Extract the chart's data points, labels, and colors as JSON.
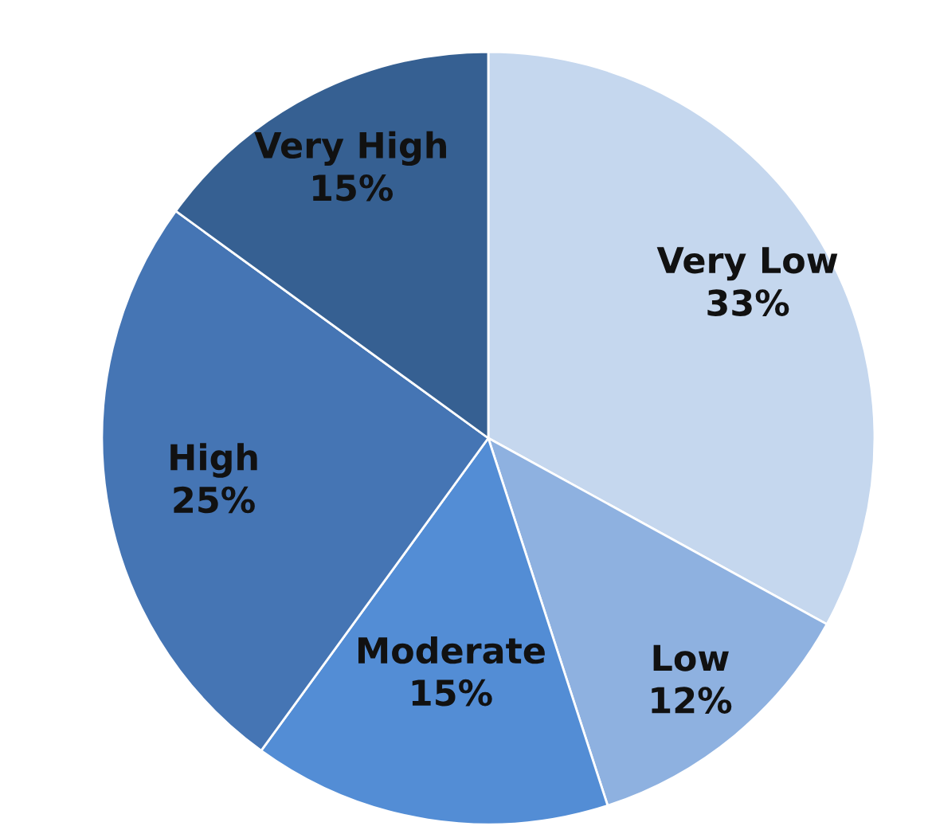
{
  "chart_data": {
    "type": "pie",
    "categories": [
      "Very Low",
      "Low",
      "Moderate",
      "High",
      "Very High"
    ],
    "values": [
      33,
      12,
      15,
      25,
      15
    ],
    "colors": [
      "#c5d7ee",
      "#8eb1e0",
      "#538dd5",
      "#4575b4",
      "#366092"
    ],
    "value_labels": [
      "33%",
      "12%",
      "15%",
      "25%",
      "15%"
    ]
  }
}
